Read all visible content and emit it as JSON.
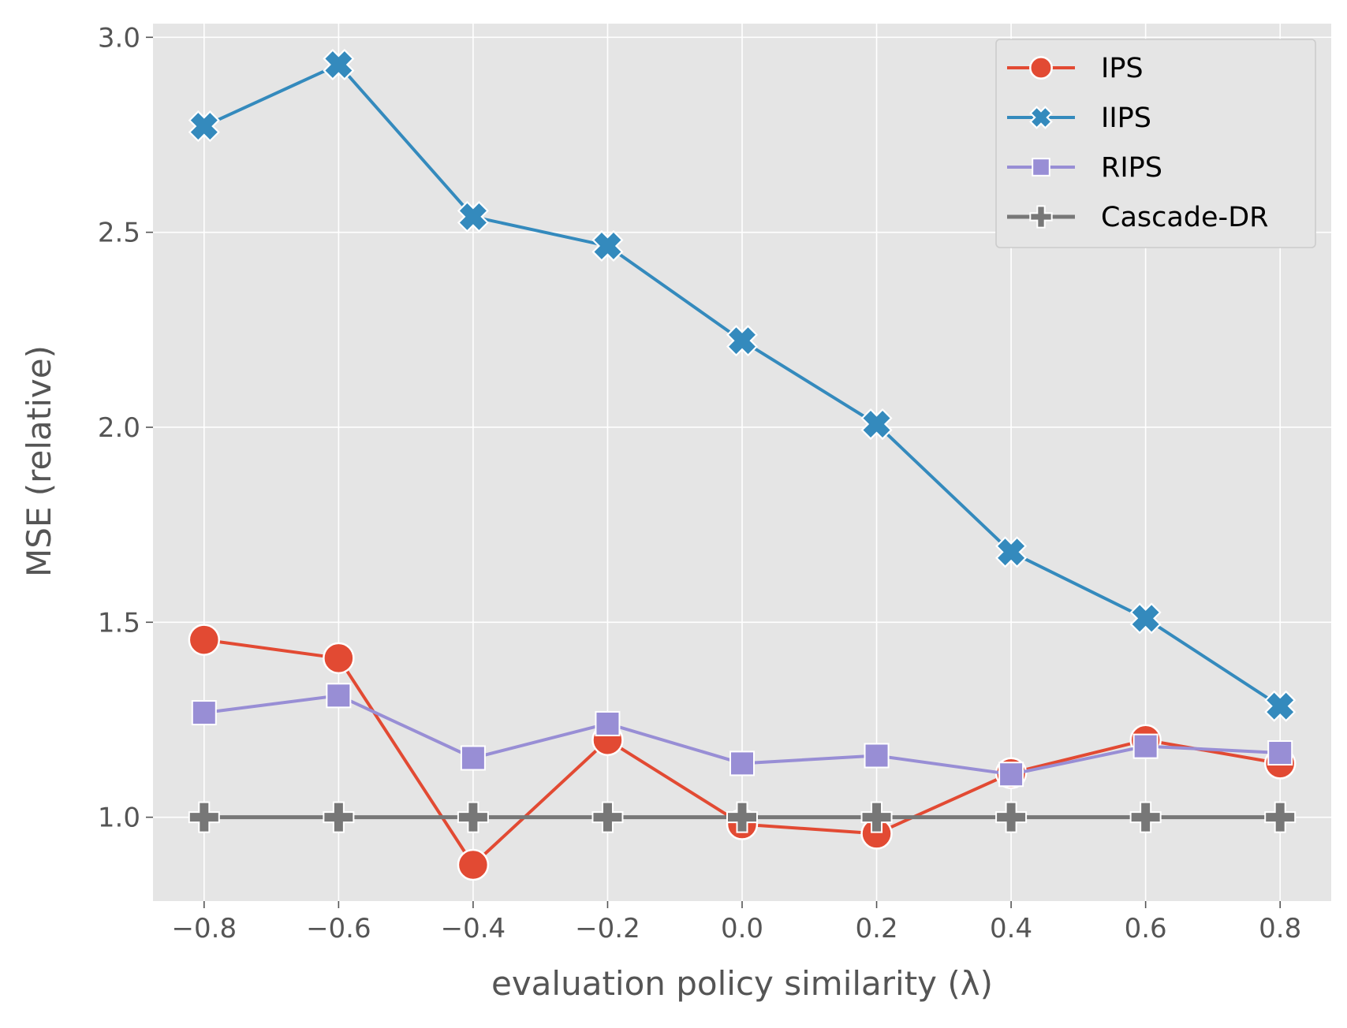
{
  "chart_data": {
    "type": "line",
    "title": "",
    "xlabel": "evaluation policy similarity (λ)",
    "ylabel": "MSE (relative)",
    "x": [
      -0.8,
      -0.6,
      -0.4,
      -0.2,
      0.0,
      0.2,
      0.4,
      0.6,
      0.8
    ],
    "x_tick_labels": [
      "−0.8",
      "−0.6",
      "−0.4",
      "−0.2",
      "0.0",
      "0.2",
      "0.4",
      "0.6",
      "0.8"
    ],
    "y_ticks": [
      1.0,
      1.5,
      2.0,
      2.5,
      3.0
    ],
    "y_tick_labels": [
      "1.0",
      "1.5",
      "2.0",
      "2.5",
      "3.0"
    ],
    "xlim": [
      -0.876,
      0.876
    ],
    "ylim": [
      0.785,
      3.035
    ],
    "grid": true,
    "legend_position": "top-right",
    "series": [
      {
        "name": "IPS",
        "marker": "circle",
        "color": "#E24A33",
        "values": [
          1.455,
          1.408,
          0.878,
          1.198,
          0.982,
          0.958,
          1.113,
          1.198,
          1.138
        ]
      },
      {
        "name": "IIPS",
        "marker": "x",
        "color": "#348ABD",
        "values": [
          2.772,
          2.93,
          2.54,
          2.465,
          2.222,
          2.008,
          1.68,
          1.51,
          1.285
        ]
      },
      {
        "name": "RIPS",
        "marker": "square",
        "color": "#988ED5",
        "values": [
          1.268,
          1.312,
          1.152,
          1.24,
          1.138,
          1.158,
          1.11,
          1.182,
          1.165
        ]
      },
      {
        "name": "Cascade-DR",
        "marker": "plus",
        "color": "#777777",
        "values": [
          1.0,
          1.0,
          1.0,
          1.0,
          1.0,
          1.0,
          1.0,
          1.0,
          1.0
        ]
      }
    ]
  }
}
